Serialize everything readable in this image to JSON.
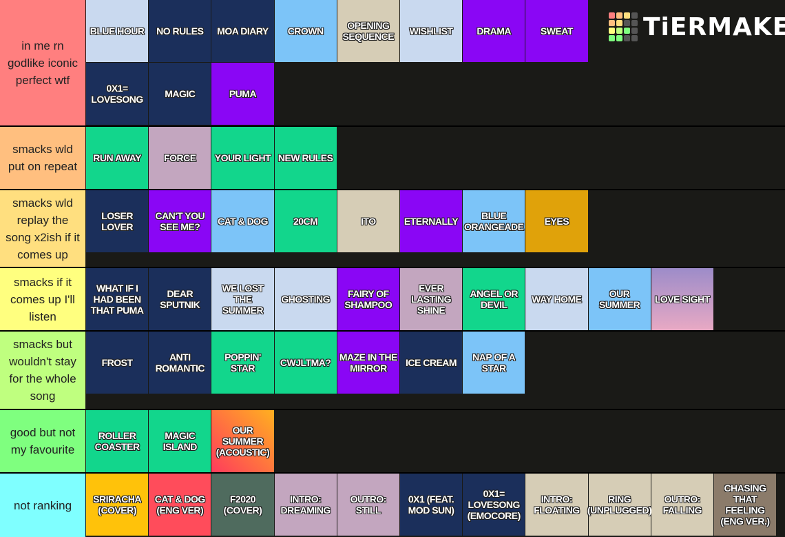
{
  "logo": "TiERMAKER",
  "tiers": [
    {
      "label": "in me rn godlike iconic perfect wtf",
      "color": "#ff7f7f",
      "items": [
        {
          "name": "BLUE HOUR",
          "color": "#c9d9ef"
        },
        {
          "name": "NO RULES",
          "color": "#1b2f5b"
        },
        {
          "name": "MOA DIARY",
          "color": "#1b2f5b"
        },
        {
          "name": "CROWN",
          "color": "#7cc4f8"
        },
        {
          "name": "OPENING SEQUENCE",
          "color": "#d6cdb6"
        },
        {
          "name": "WISHLIST",
          "color": "#c9d9ef"
        },
        {
          "name": "DRAMA",
          "color": "#8a06f5"
        },
        {
          "name": "SWEAT",
          "color": "#8a06f5"
        },
        {
          "name": "0X1= LOVESONG",
          "color": "#1b2f5b"
        },
        {
          "name": "MAGIC",
          "color": "#1b2f5b"
        },
        {
          "name": "PUMA",
          "color": "#8a06f5"
        }
      ]
    },
    {
      "label": "smacks wld put on repeat",
      "color": "#ffbf7f",
      "items": [
        {
          "name": "RUN AWAY",
          "color": "#12d68c"
        },
        {
          "name": "FORCE",
          "color": "#c3a6bf"
        },
        {
          "name": "YOUR LIGHT",
          "color": "#12d68c"
        },
        {
          "name": "NEW RULES",
          "color": "#12d68c"
        }
      ]
    },
    {
      "label": "smacks wld replay the song x2ish if it comes up",
      "color": "#ffdf7f",
      "items": [
        {
          "name": "LOSER LOVER",
          "color": "#1b2f5b"
        },
        {
          "name": "CAN'T YOU SEE ME?",
          "color": "#8a06f5"
        },
        {
          "name": "CAT & DOG",
          "color": "#7cc4f8"
        },
        {
          "name": "20CM",
          "color": "#12d68c"
        },
        {
          "name": "ITO",
          "color": "#d6cdb6"
        },
        {
          "name": "ETERNALLY",
          "color": "#8a06f5"
        },
        {
          "name": "BLUE ORANGEADE",
          "color": "#7cc4f8"
        },
        {
          "name": "EYES",
          "color": "#e0a20a"
        }
      ]
    },
    {
      "label": "smacks if it comes up I'll listen",
      "color": "#ffff7f",
      "items": [
        {
          "name": "WHAT IF I HAD BEEN THAT PUMA",
          "color": "#1b2f5b"
        },
        {
          "name": "DEAR SPUTNIK",
          "color": "#1b2f5b"
        },
        {
          "name": "WE LOST THE SUMMER",
          "color": "#c9d9ef"
        },
        {
          "name": "GHOSTING",
          "color": "#c9d9ef"
        },
        {
          "name": "FAIRY OF SHAMPOO",
          "color": "#8a06f5"
        },
        {
          "name": "EVER LASTING SHINE",
          "color": "#c3a6bf"
        },
        {
          "name": "ANGEL OR DEVIL",
          "color": "#12d68c"
        },
        {
          "name": "WAY HOME",
          "color": "#c9d9ef"
        },
        {
          "name": "OUR SUMMER",
          "color": "#7cc4f8"
        },
        {
          "name": "LOVE SIGHT",
          "color": "linear-gradient(#9d8cc9, #e8a9c4)"
        }
      ]
    },
    {
      "label": "smacks but wouldn't stay for the whole song",
      "color": "#bfff7f",
      "items": [
        {
          "name": "FROST",
          "color": "#1b2f5b"
        },
        {
          "name": "ANTI ROMANTIC",
          "color": "#1b2f5b"
        },
        {
          "name": "POPPIN' STAR",
          "color": "#12d68c"
        },
        {
          "name": "CWJLTMA?",
          "color": "#12d68c"
        },
        {
          "name": "MAZE IN THE MIRROR",
          "color": "#8a06f5"
        },
        {
          "name": "ICE CREAM",
          "color": "#1b2f5b"
        },
        {
          "name": "NAP OF A STAR",
          "color": "#7cc4f8"
        }
      ]
    },
    {
      "label": "good but not my favourite",
      "color": "#7fff7f",
      "items": [
        {
          "name": "ROLLER COASTER",
          "color": "#12d68c"
        },
        {
          "name": "MAGIC ISLAND",
          "color": "#12d68c"
        },
        {
          "name": "OUR SUMMER (ACOUSTIC)",
          "color": "linear-gradient(45deg, #ff3b5c, #ffb020)"
        }
      ]
    },
    {
      "label": "not ranking",
      "color": "#7fffff",
      "items": [
        {
          "name": "SRIRACHA (COVER)",
          "color": "#ffc20a"
        },
        {
          "name": "CAT & DOG (ENG VER)",
          "color": "#ff4c5b"
        },
        {
          "name": "F2020 (COVER)",
          "color": "#4f6b5e"
        },
        {
          "name": "INTRO: DREAMING",
          "color": "#c3a6bf"
        },
        {
          "name": "OUTRO: STILL",
          "color": "#c3a6bf"
        },
        {
          "name": "0X1 (FEAT. MOD SUN)",
          "color": "#1b2f5b"
        },
        {
          "name": "0X1= LOVESONG (EMOCORE)",
          "color": "#1b2f5b"
        },
        {
          "name": "INTRO: FLOATING",
          "color": "#d6cdb6"
        },
        {
          "name": "RING (UNPLUGGED)",
          "color": "#d6cdb6"
        },
        {
          "name": "OUTRO: FALLING",
          "color": "#d6cdb6"
        },
        {
          "name": "CHASING THAT FEELING (ENG VER.)",
          "color": "#8b7b6a"
        }
      ]
    }
  ]
}
